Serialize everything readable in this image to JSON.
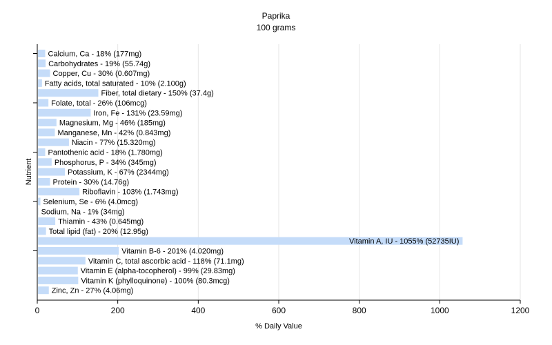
{
  "chart_data": {
    "type": "bar",
    "orientation": "horizontal",
    "title": "Paprika",
    "subtitle": "100 grams",
    "xlabel": "% Daily Value",
    "ylabel": "Nutrient",
    "xlim": [
      0,
      1200
    ],
    "xticks": [
      0,
      200,
      400,
      600,
      800,
      1000,
      1200
    ],
    "grid": true,
    "bar_color": "#c5dcf9",
    "categories": [
      "Calcium, Ca - 18% (177mg)",
      "Carbohydrates - 19% (55.74g)",
      "Copper, Cu - 30% (0.607mg)",
      "Fatty acids, total saturated - 10% (2.100g)",
      "Fiber, total dietary - 150% (37.4g)",
      "Folate, total - 26% (106mcg)",
      "Iron, Fe - 131% (23.59mg)",
      "Magnesium, Mg - 46% (185mg)",
      "Manganese, Mn - 42% (0.843mg)",
      "Niacin - 77% (15.320mg)",
      "Pantothenic acid - 18% (1.780mg)",
      "Phosphorus, P - 34% (345mg)",
      "Potassium, K - 67% (2344mg)",
      "Protein - 30% (14.76g)",
      "Riboflavin - 103% (1.743mg)",
      "Selenium, Se - 6% (4.0mcg)",
      "Sodium, Na - 1% (34mg)",
      "Thiamin - 43% (0.645mg)",
      "Total lipid (fat) - 20% (12.95g)",
      "Vitamin A, IU - 1055% (52735IU)",
      "Vitamin B-6 - 201% (4.020mg)",
      "Vitamin C, total ascorbic acid - 118% (71.1mg)",
      "Vitamin E (alpha-tocopherol) - 99% (29.83mg)",
      "Vitamin K (phylloquinone) - 100% (80.3mcg)",
      "Zinc, Zn - 27% (4.06mg)"
    ],
    "values": [
      18,
      19,
      30,
      10,
      150,
      26,
      131,
      46,
      42,
      77,
      18,
      34,
      67,
      30,
      103,
      6,
      1,
      43,
      20,
      1055,
      201,
      118,
      99,
      100,
      27
    ]
  }
}
